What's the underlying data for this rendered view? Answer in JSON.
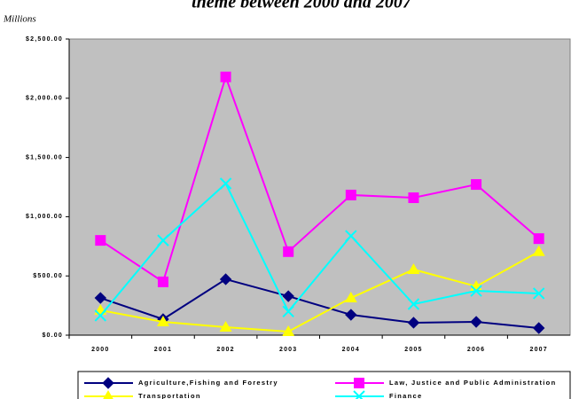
{
  "chart_data": {
    "type": "line",
    "title": "theme between 2000 and 2007",
    "y_axis_label": "Millions",
    "categories": [
      "2000",
      "2001",
      "2002",
      "2003",
      "2004",
      "2005",
      "2006",
      "2007"
    ],
    "series": [
      {
        "name": "Agriculture,Fishing and Forestry",
        "color": "#000080",
        "marker": "diamond",
        "values": [
          314,
          135,
          472,
          329,
          172,
          105,
          112,
          60
        ]
      },
      {
        "name": "Law, Justice and Public Administration",
        "color": "#ff00ff",
        "marker": "square",
        "values": [
          800,
          450,
          2180,
          705,
          1183,
          1160,
          1272,
          815
        ]
      },
      {
        "name": "Transportation",
        "color": "#ffff00",
        "marker": "triangle",
        "values": [
          210,
          112,
          67,
          30,
          314,
          554,
          412,
          705
        ]
      },
      {
        "name": "Finance",
        "color": "#00ffff",
        "marker": "x",
        "values": [
          165,
          800,
          1280,
          200,
          838,
          262,
          374,
          352
        ]
      }
    ],
    "ylim": [
      0,
      2500
    ],
    "yticks": [
      {
        "value": 0,
        "label": "$0.00"
      },
      {
        "value": 500,
        "label": "$500.00"
      },
      {
        "value": 1000,
        "label": "$1,000.00"
      },
      {
        "value": 1500,
        "label": "$1,500.00"
      },
      {
        "value": 2000,
        "label": "$2,000.00"
      },
      {
        "value": 2500,
        "label": "$2,500.00"
      }
    ],
    "grid": false,
    "plot_background": "#c0c0c0",
    "legend": "bottom"
  }
}
